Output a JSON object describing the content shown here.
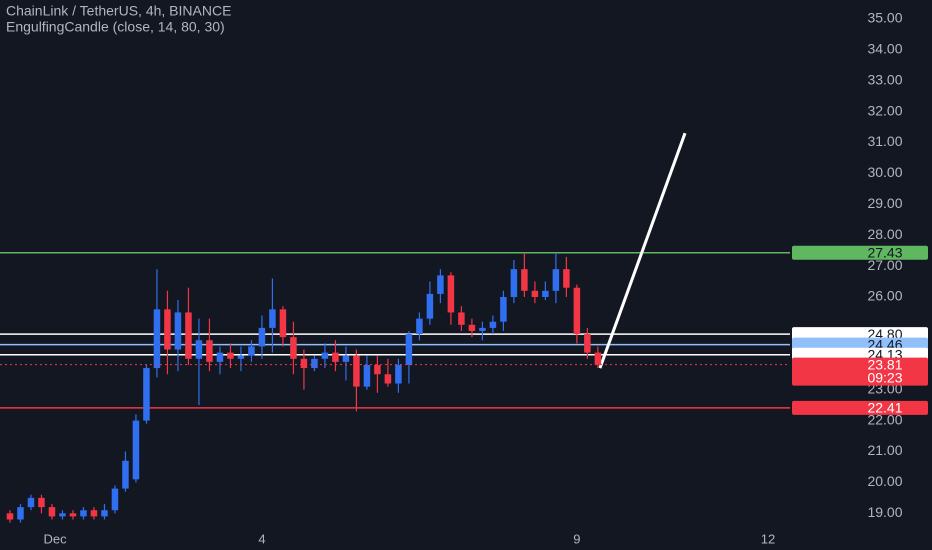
{
  "chart_data": {
    "type": "candlestick",
    "title": "ChainLink / TetherUS, 4h, BINANCE",
    "subtitle": "EngulfingCandle (close, 14, 80, 30)",
    "up_color": "#2f6ff0",
    "down_color": "#f23645",
    "xlim": [
      -0.95,
      74.3
    ],
    "ylim": [
      18.46,
      35.61
    ],
    "xticks": [
      {
        "value": 4.3,
        "label": "Dec"
      },
      {
        "value": 24,
        "label": "4"
      },
      {
        "value": 54,
        "label": "9"
      },
      {
        "value": 72.2,
        "label": "12"
      }
    ],
    "yticks": [
      {
        "value": 35,
        "label": "35.00"
      },
      {
        "value": 34,
        "label": "34.00"
      },
      {
        "value": 33,
        "label": "33.00"
      },
      {
        "value": 32,
        "label": "32.00"
      },
      {
        "value": 31,
        "label": "31.00"
      },
      {
        "value": 30,
        "label": "30.00"
      },
      {
        "value": 29,
        "label": "29.00"
      },
      {
        "value": 28,
        "label": "28.00"
      },
      {
        "value": 27,
        "label": "27.00"
      },
      {
        "value": 26,
        "label": "26.00"
      },
      {
        "value": 23,
        "label": "23.00"
      },
      {
        "value": 22,
        "label": "22.00"
      },
      {
        "value": 21,
        "label": "21.00"
      },
      {
        "value": 20,
        "label": "20.00"
      },
      {
        "value": 19,
        "label": "19.00"
      }
    ],
    "candles": [
      {
        "open": 19.0,
        "high": 19.1,
        "low": 18.7,
        "close": 18.8
      },
      {
        "open": 18.8,
        "high": 19.3,
        "low": 18.7,
        "close": 19.2
      },
      {
        "open": 19.2,
        "high": 19.6,
        "low": 19.1,
        "close": 19.5
      },
      {
        "open": 19.5,
        "high": 19.6,
        "low": 19.0,
        "close": 19.2
      },
      {
        "open": 19.2,
        "high": 19.3,
        "low": 18.8,
        "close": 18.9
      },
      {
        "open": 18.9,
        "high": 19.1,
        "low": 18.8,
        "close": 19.0
      },
      {
        "open": 19.0,
        "high": 19.1,
        "low": 18.8,
        "close": 18.9
      },
      {
        "open": 18.9,
        "high": 19.2,
        "low": 18.8,
        "close": 19.1
      },
      {
        "open": 19.1,
        "high": 19.2,
        "low": 18.8,
        "close": 18.9
      },
      {
        "open": 18.9,
        "high": 19.3,
        "low": 18.8,
        "close": 19.1
      },
      {
        "open": 19.1,
        "high": 19.9,
        "low": 19.0,
        "close": 19.8
      },
      {
        "open": 19.8,
        "high": 21.0,
        "low": 19.7,
        "close": 20.7
      },
      {
        "open": 20.1,
        "high": 22.2,
        "low": 20.0,
        "close": 22.0
      },
      {
        "open": 22.0,
        "high": 23.8,
        "low": 21.9,
        "close": 23.7
      },
      {
        "open": 23.7,
        "high": 26.9,
        "low": 23.4,
        "close": 25.6
      },
      {
        "open": 25.6,
        "high": 26.2,
        "low": 23.5,
        "close": 24.3
      },
      {
        "open": 24.3,
        "high": 25.9,
        "low": 23.6,
        "close": 25.5
      },
      {
        "open": 25.5,
        "high": 26.3,
        "low": 23.8,
        "close": 24.0
      },
      {
        "open": 24.0,
        "high": 25.3,
        "low": 22.5,
        "close": 24.6
      },
      {
        "open": 24.6,
        "high": 25.3,
        "low": 23.6,
        "close": 23.9
      },
      {
        "open": 23.9,
        "high": 24.4,
        "low": 23.5,
        "close": 24.2
      },
      {
        "open": 24.2,
        "high": 24.5,
        "low": 23.7,
        "close": 24.0
      },
      {
        "open": 24.0,
        "high": 24.4,
        "low": 23.6,
        "close": 24.1
      },
      {
        "open": 24.1,
        "high": 24.6,
        "low": 23.9,
        "close": 24.4
      },
      {
        "open": 24.4,
        "high": 25.4,
        "low": 24.0,
        "close": 25.0
      },
      {
        "open": 25.0,
        "high": 26.6,
        "low": 24.2,
        "close": 25.6
      },
      {
        "open": 25.6,
        "high": 25.7,
        "low": 24.4,
        "close": 24.7
      },
      {
        "open": 24.7,
        "high": 25.2,
        "low": 23.5,
        "close": 24.0
      },
      {
        "open": 24.0,
        "high": 24.3,
        "low": 23.0,
        "close": 23.7
      },
      {
        "open": 23.7,
        "high": 24.1,
        "low": 23.6,
        "close": 24.0
      },
      {
        "open": 24.0,
        "high": 24.5,
        "low": 23.7,
        "close": 24.2
      },
      {
        "open": 24.2,
        "high": 24.6,
        "low": 23.6,
        "close": 23.9
      },
      {
        "open": 23.9,
        "high": 24.4,
        "low": 23.3,
        "close": 24.1
      },
      {
        "open": 24.1,
        "high": 24.3,
        "low": 22.3,
        "close": 23.1
      },
      {
        "open": 23.1,
        "high": 24.1,
        "low": 23.0,
        "close": 23.8
      },
      {
        "open": 23.8,
        "high": 24.1,
        "low": 22.9,
        "close": 23.5
      },
      {
        "open": 23.5,
        "high": 24.0,
        "low": 23.1,
        "close": 23.2
      },
      {
        "open": 23.2,
        "high": 24.0,
        "low": 22.9,
        "close": 23.8
      },
      {
        "open": 23.8,
        "high": 24.9,
        "low": 23.2,
        "close": 24.8
      },
      {
        "open": 24.8,
        "high": 25.5,
        "low": 24.6,
        "close": 25.3
      },
      {
        "open": 25.3,
        "high": 26.5,
        "low": 25.1,
        "close": 26.1
      },
      {
        "open": 26.1,
        "high": 26.9,
        "low": 25.8,
        "close": 26.7
      },
      {
        "open": 26.7,
        "high": 26.8,
        "low": 25.1,
        "close": 25.5
      },
      {
        "open": 25.5,
        "high": 25.7,
        "low": 24.9,
        "close": 25.1
      },
      {
        "open": 25.1,
        "high": 25.3,
        "low": 24.7,
        "close": 24.9
      },
      {
        "open": 24.9,
        "high": 25.2,
        "low": 24.6,
        "close": 25.0
      },
      {
        "open": 25.0,
        "high": 25.4,
        "low": 24.8,
        "close": 25.2
      },
      {
        "open": 25.2,
        "high": 26.2,
        "low": 24.9,
        "close": 26.0
      },
      {
        "open": 26.0,
        "high": 27.2,
        "low": 25.8,
        "close": 26.9
      },
      {
        "open": 26.9,
        "high": 27.43,
        "low": 26.0,
        "close": 26.2
      },
      {
        "open": 26.2,
        "high": 26.5,
        "low": 25.8,
        "close": 26.0
      },
      {
        "open": 26.0,
        "high": 26.5,
        "low": 25.9,
        "close": 26.2
      },
      {
        "open": 26.2,
        "high": 27.43,
        "low": 25.8,
        "close": 26.9
      },
      {
        "open": 26.9,
        "high": 27.3,
        "low": 26.0,
        "close": 26.3
      },
      {
        "open": 26.3,
        "high": 26.4,
        "low": 24.5,
        "close": 24.8
      },
      {
        "open": 24.8,
        "high": 25.0,
        "low": 24.0,
        "close": 24.2
      },
      {
        "open": 24.2,
        "high": 24.4,
        "low": 23.7,
        "close": 23.81
      }
    ],
    "levels": [
      {
        "value": 27.43,
        "label": "27.43",
        "color": "#5fb760",
        "text_color": "#131722"
      },
      {
        "value": 24.8,
        "label": "24.80",
        "color": "#ffffff",
        "text_color": "#131722"
      },
      {
        "value": 24.46,
        "label": "24.46",
        "color": "#90bff9",
        "text_color": "#131722"
      },
      {
        "value": 24.13,
        "label": "24.13",
        "color": "#ffffff",
        "text_color": "#131722"
      },
      {
        "value": 22.41,
        "label": "22.41",
        "color": "#f23645",
        "text_color": "#ffffff"
      }
    ],
    "last_price": {
      "value": 23.81,
      "label": "23.81",
      "countdown": "09:23",
      "color": "#f23645"
    },
    "drawing": {
      "x": [
        56.2,
        64.3
      ],
      "y": [
        23.7,
        31.3
      ],
      "color": "#ffffff"
    }
  }
}
